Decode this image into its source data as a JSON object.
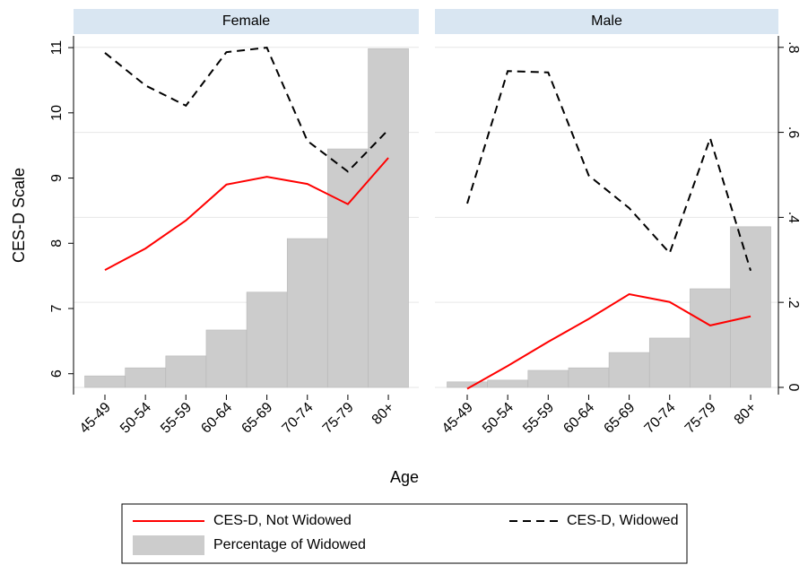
{
  "chart_data": {
    "type": "bar-line",
    "ylabel": "CES-D Scale",
    "xlabel": "Age",
    "categories": [
      "45-49",
      "50-54",
      "55-59",
      "60-64",
      "65-69",
      "70-74",
      "75-79",
      "80+"
    ],
    "ylim": [
      5.68,
      11.18
    ],
    "yticks": [
      6,
      7,
      8,
      9,
      10,
      11
    ],
    "y2lim": [
      -0.017,
      0.827
    ],
    "y2ticks": [
      0,
      {
        "value": 0.2,
        "label": ".2"
      },
      {
        "value": 0.4,
        "label": ".4"
      },
      {
        "value": 0.6,
        "label": ".6"
      },
      {
        "value": 0.8,
        "label": ".8"
      }
    ],
    "grid": true,
    "series": [
      {
        "name": "CES-D, Not Widowed",
        "color": "#ff0000",
        "type": "line",
        "dash": false,
        "axis": "y"
      },
      {
        "name": "CES-D, Widowed",
        "color": "#000000",
        "type": "line",
        "dash": true,
        "axis": "y"
      },
      {
        "name": "Percentage of Widowed",
        "color": "#cccccc",
        "type": "bar",
        "axis": "y2"
      }
    ],
    "panels": [
      {
        "title": "Female",
        "values": [
          [
            7.59,
            7.92,
            8.35,
            8.9,
            9.02,
            8.91,
            8.6,
            9.31
          ],
          [
            10.92,
            10.42,
            10.11,
            10.93,
            11.0,
            9.57,
            9.1,
            9.74
          ],
          [
            0.027,
            0.046,
            0.074,
            0.135,
            0.224,
            0.35,
            0.561,
            0.797
          ]
        ]
      },
      {
        "title": "Male",
        "values": [
          [
            5.77,
            6.12,
            6.49,
            6.84,
            7.22,
            7.1,
            6.74,
            6.88
          ],
          [
            8.61,
            10.64,
            10.62,
            9.04,
            8.54,
            7.85,
            9.61,
            7.58
          ],
          [
            0.013,
            0.017,
            0.04,
            0.046,
            0.082,
            0.116,
            0.232,
            0.378
          ]
        ]
      }
    ]
  }
}
